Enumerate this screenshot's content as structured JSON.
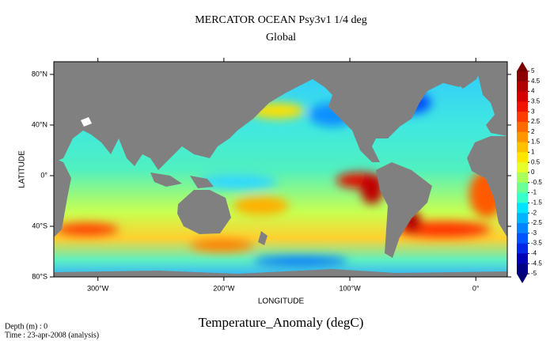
{
  "chart_data": {
    "type": "map",
    "title": "MERCATOR OCEAN Psy3v1 1/4 deg",
    "subtitle": "Global",
    "xlabel": "LONGITUDE",
    "ylabel": "LATITUDE",
    "xlim": [
      -335,
      25
    ],
    "ylim": [
      -80,
      90
    ],
    "xticks": [
      {
        "value": -300,
        "label": "300°W"
      },
      {
        "value": -200,
        "label": "200°W"
      },
      {
        "value": -100,
        "label": "100°W"
      },
      {
        "value": 0,
        "label": "0°"
      }
    ],
    "yticks": [
      {
        "value": 80,
        "label": "80°N"
      },
      {
        "value": 40,
        "label": "40°N"
      },
      {
        "value": 0,
        "label": "0°"
      },
      {
        "value": -40,
        "label": "40°S"
      },
      {
        "value": -80,
        "label": "80°S"
      }
    ],
    "colorbar": {
      "label": "Temperature_Anomaly (degC)",
      "levels": [
        5,
        4.5,
        4,
        3.5,
        3,
        2.5,
        2,
        1.5,
        1,
        0.5,
        0,
        -0.5,
        -1,
        -1.5,
        -2,
        -2.5,
        -3,
        -3.5,
        -4,
        -4.5,
        -5
      ],
      "colors": [
        "#8c0000",
        "#b00000",
        "#d40000",
        "#f01400",
        "#ff3c00",
        "#ff6a00",
        "#ff9600",
        "#ffc000",
        "#ffe600",
        "#e6ff2a",
        "#aaff5a",
        "#6cff96",
        "#36ffcc",
        "#00e4ff",
        "#00b4ff",
        "#0084ff",
        "#0054ff",
        "#0026e6",
        "#0000b4",
        "#000084"
      ],
      "over_color": "#780000",
      "under_color": "#000070"
    },
    "footer": [
      "Depth (m) : 0",
      "Time : 23-apr-2008 (analysis)"
    ]
  }
}
